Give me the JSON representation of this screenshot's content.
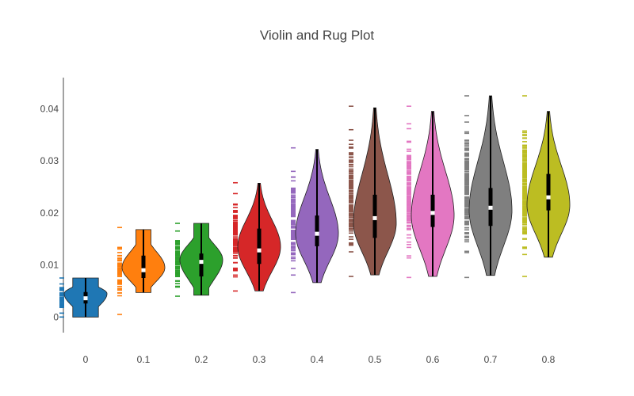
{
  "chart_data": {
    "type": "violin",
    "title": "Violin and Rug Plot",
    "xlabel": "",
    "ylabel": "",
    "ylim": [
      -0.003,
      0.046
    ],
    "y_ticks": [
      0,
      0.01,
      0.02,
      0.03,
      0.04
    ],
    "y_tick_labels": [
      "0",
      "0.01",
      "0.02",
      "0.03",
      "0.04"
    ],
    "grid": false,
    "legend": "none",
    "series": [
      {
        "category": "0",
        "color": "#1f77b4",
        "min": 0.0,
        "q1": 0.0026,
        "median": 0.0036,
        "q3": 0.0048,
        "max": 0.0075,
        "rug_min": 0.0,
        "rug_max": 0.0075,
        "mode": 0.0045
      },
      {
        "category": "0.1",
        "color": "#ff7f0e",
        "min": 0.0047,
        "q1": 0.0075,
        "median": 0.009,
        "q3": 0.0118,
        "max": 0.0168,
        "rug_min": 0.0005,
        "rug_max": 0.0172,
        "mode": 0.0095
      },
      {
        "category": "0.2",
        "color": "#2ca02c",
        "min": 0.0042,
        "q1": 0.0078,
        "median": 0.0106,
        "q3": 0.0122,
        "max": 0.018,
        "rug_min": 0.004,
        "rug_max": 0.018,
        "mode": 0.011
      },
      {
        "category": "0.3",
        "color": "#d62728",
        "min": 0.005,
        "q1": 0.0102,
        "median": 0.0128,
        "q3": 0.017,
        "max": 0.0257,
        "rug_min": 0.005,
        "rug_max": 0.0258,
        "mode": 0.0135
      },
      {
        "category": "0.4",
        "color": "#9467bd",
        "min": 0.0066,
        "q1": 0.0136,
        "median": 0.016,
        "q3": 0.0195,
        "max": 0.0322,
        "rug_min": 0.0047,
        "rug_max": 0.0325,
        "mode": 0.016
      },
      {
        "category": "0.5",
        "color": "#8c564b",
        "min": 0.0081,
        "q1": 0.0152,
        "median": 0.019,
        "q3": 0.0235,
        "max": 0.0402,
        "rug_min": 0.0078,
        "rug_max": 0.0405,
        "mode": 0.018
      },
      {
        "category": "0.6",
        "color": "#e377c2",
        "min": 0.0078,
        "q1": 0.0173,
        "median": 0.02,
        "q3": 0.0235,
        "max": 0.0395,
        "rug_min": 0.0076,
        "rug_max": 0.0405,
        "mode": 0.0195
      },
      {
        "category": "0.7",
        "color": "#7f7f7f",
        "min": 0.008,
        "q1": 0.0175,
        "median": 0.021,
        "q3": 0.0248,
        "max": 0.0425,
        "rug_min": 0.0076,
        "rug_max": 0.0425,
        "mode": 0.0205
      },
      {
        "category": "0.8",
        "color": "#bcbd22",
        "min": 0.0115,
        "q1": 0.0205,
        "median": 0.023,
        "q3": 0.0275,
        "max": 0.0395,
        "rug_min": 0.0078,
        "rug_max": 0.0425,
        "mode": 0.0215
      }
    ]
  }
}
